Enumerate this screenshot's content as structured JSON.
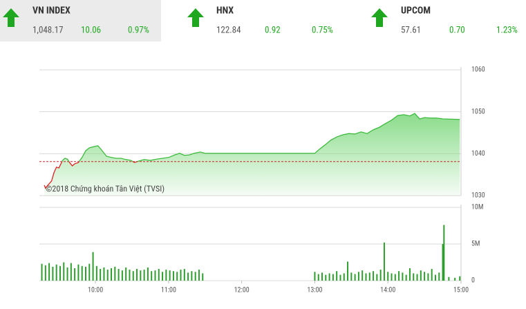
{
  "indices": [
    {
      "name": "VN INDEX",
      "value": "1,048.17",
      "change": "10.06",
      "percent": "0.97%"
    },
    {
      "name": "HNX",
      "value": "122.84",
      "change": "0.92",
      "percent": "0.75%"
    },
    {
      "name": "UPCOM",
      "value": "57.61",
      "change": "0.70",
      "percent": "1.23%"
    }
  ],
  "chart_data": [
    {
      "type": "line",
      "watermark": "©2018 Chứng khoán Tân Việt (TVSI)",
      "xlim": [
        "09:14",
        "15:00"
      ],
      "ylim": [
        1030,
        1060
      ],
      "yticks": [
        1030,
        1040,
        1050,
        1060
      ],
      "grid": true,
      "reference": 1038.11,
      "reference_color": "#cc2222",
      "x": [
        "09:18",
        "09:19",
        "09:21",
        "09:24",
        "09:26",
        "09:28",
        "09:30",
        "09:33",
        "09:35",
        "09:37",
        "09:39",
        "09:41",
        "09:43",
        "09:46",
        "09:49",
        "09:52",
        "09:55",
        "09:59",
        "10:02",
        "10:05",
        "10:09",
        "10:13",
        "10:17",
        "10:21",
        "10:25",
        "10:29",
        "10:32",
        "10:35",
        "10:40",
        "10:45",
        "10:50",
        "10:55",
        "11:00",
        "11:05",
        "11:09",
        "11:13",
        "11:17",
        "11:21",
        "11:26",
        "11:30",
        "13:00",
        "13:04",
        "13:08",
        "13:13",
        "13:18",
        "13:23",
        "13:28",
        "13:33",
        "13:38",
        "13:43",
        "13:48",
        "13:53",
        "13:58",
        "14:03",
        "14:08",
        "14:13",
        "14:18",
        "14:22",
        "14:26",
        "14:30",
        "14:35",
        "14:40",
        "14:45",
        "14:59"
      ],
      "series": [
        {
          "color": "#3dbb3d",
          "below_color": "#dd2222",
          "values": [
            1032.5,
            1031.8,
            1032.5,
            1033.5,
            1035.5,
            1036.8,
            1036.6,
            1038.4,
            1038.9,
            1038.7,
            1037.8,
            1037.1,
            1037.6,
            1037.9,
            1039.1,
            1040.7,
            1041.4,
            1041.7,
            1041.9,
            1040.9,
            1039.4,
            1039.1,
            1038.9,
            1038.9,
            1038.6,
            1038.4,
            1037.9,
            1038.2,
            1038.6,
            1038.4,
            1038.7,
            1038.9,
            1039.1,
            1039.7,
            1040.1,
            1039.6,
            1039.7,
            1040.1,
            1040.4,
            1040.1,
            1040.1,
            1041.1,
            1042.0,
            1043.2,
            1044.0,
            1044.5,
            1044.8,
            1044.7,
            1045.2,
            1044.8,
            1045.7,
            1046.3,
            1047.2,
            1048.0,
            1049.1,
            1049.3,
            1049.0,
            1049.6,
            1048.3,
            1048.6,
            1048.5,
            1048.5,
            1048.3,
            1048.17
          ]
        }
      ]
    },
    {
      "type": "bar",
      "xlim": [
        "09:14",
        "15:00"
      ],
      "ylim": [
        0,
        10
      ],
      "yticks": [
        0,
        {
          "value": 5,
          "label": "5M"
        },
        {
          "value": 10,
          "label": "10M"
        }
      ],
      "grid": true,
      "xticks": [
        "10:00",
        "11:00",
        "12:00",
        "13:00",
        "14:00",
        "15:00"
      ],
      "color": "#2e9e2e",
      "x": [
        "09:16",
        "09:19",
        "09:22",
        "09:25",
        "09:28",
        "09:31",
        "09:34",
        "09:37",
        "09:40",
        "09:43",
        "09:46",
        "09:49",
        "09:52",
        "09:55",
        "09:58",
        "10:01",
        "10:04",
        "10:07",
        "10:10",
        "10:13",
        "10:16",
        "10:19",
        "10:22",
        "10:25",
        "10:28",
        "10:31",
        "10:34",
        "10:37",
        "10:40",
        "10:43",
        "10:46",
        "10:49",
        "10:52",
        "10:55",
        "10:58",
        "11:01",
        "11:04",
        "11:07",
        "11:10",
        "11:13",
        "11:16",
        "11:19",
        "11:22",
        "11:25",
        "11:28",
        "13:00",
        "13:03",
        "13:06",
        "13:09",
        "13:12",
        "13:15",
        "13:18",
        "13:21",
        "13:24",
        "13:27",
        "13:30",
        "13:33",
        "13:36",
        "13:39",
        "13:42",
        "13:45",
        "13:48",
        "13:51",
        "13:54",
        "13:57",
        "14:00",
        "14:03",
        "14:06",
        "14:09",
        "14:12",
        "14:15",
        "14:18",
        "14:21",
        "14:24",
        "14:27",
        "14:30",
        "14:33",
        "14:36",
        "14:39",
        "14:42",
        "14:45",
        "14:46",
        "14:50",
        "14:55",
        "14:59"
      ],
      "values": [
        2.3,
        2.1,
        2.4,
        1.9,
        2.2,
        2.0,
        2.5,
        1.8,
        2.4,
        1.7,
        2.2,
        2.0,
        1.9,
        2.3,
        3.9,
        2.0,
        1.6,
        1.8,
        1.5,
        1.7,
        1.9,
        1.6,
        1.4,
        1.8,
        1.5,
        1.3,
        1.6,
        1.4,
        1.5,
        1.8,
        1.3,
        1.4,
        1.6,
        1.2,
        1.5,
        1.4,
        1.3,
        1.2,
        1.5,
        1.6,
        1.1,
        1.3,
        1.2,
        1.5,
        1.0,
        1.2,
        0.9,
        1.1,
        0.8,
        1.0,
        0.9,
        1.3,
        0.8,
        1.0,
        2.6,
        1.1,
        0.9,
        1.2,
        1.4,
        1.0,
        1.1,
        1.3,
        0.9,
        1.5,
        5.2,
        1.2,
        1.0,
        0.9,
        1.3,
        1.1,
        0.8,
        1.7,
        1.0,
        0.9,
        1.4,
        1.2,
        1.0,
        1.6,
        0.8,
        1.1,
        5.0,
        7.6,
        0.5,
        0.4,
        0.6
      ]
    }
  ]
}
